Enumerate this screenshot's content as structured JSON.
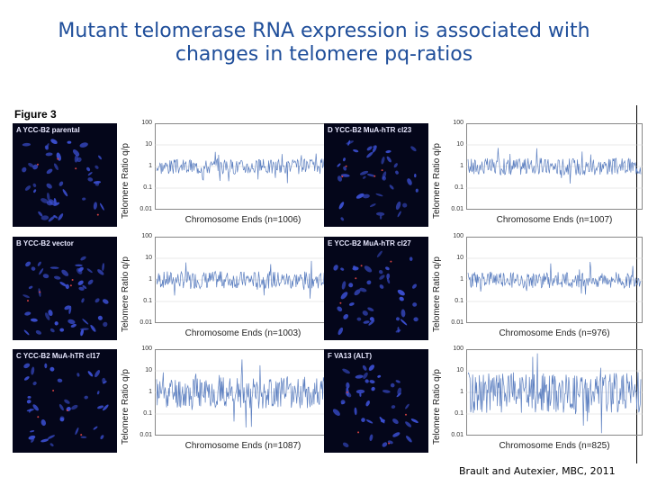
{
  "title_line1": "Mutant telomerase RNA expression is associated with",
  "title_line2": "changes in telomere pq-ratios",
  "figure_label": "Figure 3",
  "citation": "Brault and Autexier, MBC, 2011",
  "y_label": "Telomere Ratio q/p",
  "colors": {
    "title": "#1f4e9a",
    "trace": "#5c7fc0",
    "cell": "#3a4ecf",
    "background": "#04061a"
  },
  "chart_data": [
    {
      "type": "line",
      "panel": "A",
      "micro_label": "A YCC-B2 parental",
      "xlabel": "Chromosome Ends (n=1006)",
      "ylabel": "Telomere Ratio q/p",
      "yscale": "log",
      "ylim": [
        0.01,
        100
      ],
      "yticks": [
        "100",
        "10",
        "1",
        "0.1",
        "0.01"
      ],
      "n": 1006,
      "variability": 0.35,
      "seed": 3
    },
    {
      "type": "line",
      "panel": "B",
      "micro_label": "B YCC-B2 vector",
      "xlabel": "Chromosome Ends (n=1003)",
      "ylabel": "Telomere Ratio q/p",
      "yscale": "log",
      "ylim": [
        0.01,
        100
      ],
      "yticks": [
        "100",
        "10",
        "1",
        "0.1",
        "0.01"
      ],
      "n": 1003,
      "variability": 0.4,
      "seed": 7
    },
    {
      "type": "line",
      "panel": "C",
      "micro_label": "C YCC-B2 MuA-hTR cl17",
      "xlabel": "Chromosome Ends (n=1087)",
      "ylabel": "Telomere Ratio q/p",
      "yscale": "log",
      "ylim": [
        0.01,
        100
      ],
      "yticks": [
        "100",
        "10",
        "1",
        "0.1",
        "0.01"
      ],
      "n": 1087,
      "variability": 0.75,
      "seed": 11
    },
    {
      "type": "line",
      "panel": "D",
      "micro_label": "D YCC-B2 MuA-hTR cl23",
      "xlabel": "Chromosome Ends (n=1007)",
      "ylabel": "Telomere Ratio q/p",
      "yscale": "log",
      "ylim": [
        0.01,
        100
      ],
      "yticks": [
        "100",
        "10",
        "1",
        "0.1",
        "0.01"
      ],
      "n": 1007,
      "variability": 0.4,
      "seed": 17
    },
    {
      "type": "line",
      "panel": "E",
      "micro_label": "E YCC-B2 MuA-hTR cl27",
      "xlabel": "Chromosome Ends (n=976)",
      "ylabel": "Telomere Ratio q/p",
      "yscale": "log",
      "ylim": [
        0.01,
        100
      ],
      "yticks": [
        "100",
        "10",
        "1",
        "0.1",
        "0.01"
      ],
      "n": 976,
      "variability": 0.38,
      "seed": 23
    },
    {
      "type": "line",
      "panel": "F",
      "micro_label": "F VA13 (ALT)",
      "xlabel": "Chromosome Ends (n=825)",
      "ylabel": "Telomere Ratio q/p",
      "yscale": "log",
      "ylim": [
        0.01,
        100
      ],
      "yticks": [
        "100",
        "10",
        "1",
        "0.1",
        "0.01"
      ],
      "n": 825,
      "variability": 0.95,
      "seed": 29
    }
  ]
}
